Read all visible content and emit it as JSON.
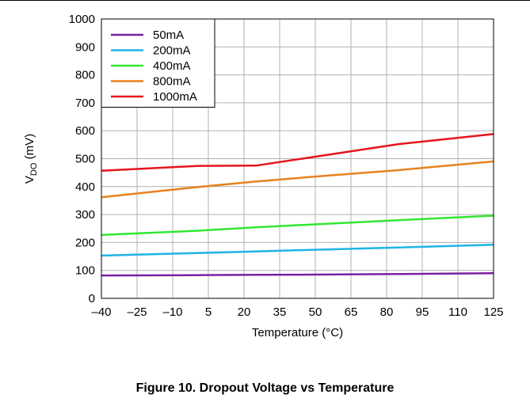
{
  "caption": "Figure 10. Dropout Voltage vs Temperature",
  "chart_data": {
    "type": "line",
    "xlabel": "Temperature (°C)",
    "ylabel_main": "V",
    "ylabel_sub": "DO",
    "ylabel_unit": " (mV)",
    "xlim": [
      -40,
      125
    ],
    "ylim": [
      0,
      1000
    ],
    "x_ticks": [
      -40,
      -25,
      -10,
      5,
      20,
      35,
      50,
      65,
      80,
      95,
      110,
      125
    ],
    "x_tick_labels": [
      "–40",
      "–25",
      "–10",
      "5",
      "20",
      "35",
      "50",
      "65",
      "80",
      "95",
      "110",
      "125"
    ],
    "y_ticks": [
      0,
      100,
      200,
      300,
      400,
      500,
      600,
      700,
      800,
      900,
      1000
    ],
    "y_tick_labels": [
      "0",
      "100",
      "200",
      "300",
      "400",
      "500",
      "600",
      "700",
      "800",
      "900",
      "1000"
    ],
    "grid": true,
    "legend_position": "top-left",
    "series": [
      {
        "name": "50mA",
        "color": "#7a1fa2",
        "x": [
          -40,
          0,
          25,
          50,
          85,
          125
        ],
        "y": [
          82,
          83,
          84,
          85,
          87,
          90
        ]
      },
      {
        "name": "200mA",
        "color": "#1eb4e6",
        "x": [
          -40,
          0,
          25,
          50,
          85,
          125
        ],
        "y": [
          153,
          162,
          168,
          174,
          182,
          192
        ]
      },
      {
        "name": "400mA",
        "color": "#33e633",
        "x": [
          -40,
          0,
          25,
          50,
          85,
          125
        ],
        "y": [
          227,
          242,
          254,
          265,
          280,
          296
        ]
      },
      {
        "name": "800mA",
        "color": "#e6821e",
        "x": [
          -40,
          0,
          25,
          50,
          85,
          125
        ],
        "y": [
          362,
          398,
          418,
          436,
          459,
          490
        ]
      },
      {
        "name": "1000mA",
        "color": "#e6141e",
        "x": [
          -40,
          0,
          25,
          50,
          85,
          107,
          125
        ],
        "y": [
          457,
          474,
          475,
          507,
          552,
          572,
          588
        ]
      }
    ]
  }
}
